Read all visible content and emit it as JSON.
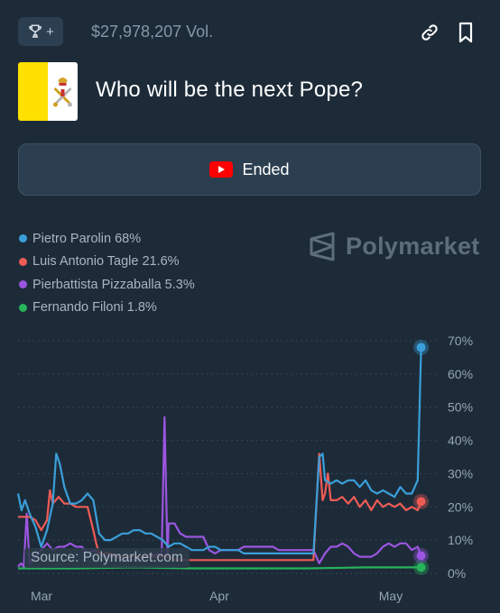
{
  "header": {
    "volume": "$27,978,207 Vol.",
    "trophy_plus": "+",
    "icons": [
      "trophy-icon",
      "link-icon",
      "bookmark-icon"
    ]
  },
  "market": {
    "title": "Who will be the next Pope?",
    "flag": "vatican-flag",
    "status_label": "Ended",
    "status_icon": "youtube-play-icon"
  },
  "watermark": {
    "text": "Polymarket"
  },
  "source": "Source: Polymarket.com",
  "colors": {
    "background": "#1d2b39",
    "parolin": "#3a9fd9",
    "tagle": "#ef5b55",
    "pizzaballa": "#9b55e0",
    "filoni": "#27b35a"
  },
  "chart_data": {
    "type": "line",
    "x_ticks": [
      "Mar",
      "Apr",
      "May"
    ],
    "y_ticks": [
      "0%",
      "10%",
      "20%",
      "30%",
      "40%",
      "50%",
      "60%",
      "70%"
    ],
    "ylim": [
      0,
      70
    ],
    "xlim": [
      0,
      72
    ],
    "grid": "dotted horizontal",
    "legend_position": "top-left",
    "series": [
      {
        "name": "Pietro Parolin",
        "current_label": "Pietro Parolin 68%",
        "current": 68,
        "color": "#3a9fd9",
        "points": [
          [
            0,
            24
          ],
          [
            0.6,
            19
          ],
          [
            1.2,
            22
          ],
          [
            2,
            18
          ],
          [
            3,
            14
          ],
          [
            4,
            8
          ],
          [
            5,
            13
          ],
          [
            6,
            21
          ],
          [
            6.6,
            36
          ],
          [
            7.2,
            33
          ],
          [
            8,
            26
          ],
          [
            9,
            21
          ],
          [
            10,
            21
          ],
          [
            11,
            22
          ],
          [
            12,
            24
          ],
          [
            13,
            22
          ],
          [
            14,
            12
          ],
          [
            15,
            10
          ],
          [
            16,
            10
          ],
          [
            17,
            11
          ],
          [
            18,
            12
          ],
          [
            19,
            12
          ],
          [
            20,
            13
          ],
          [
            21,
            13
          ],
          [
            22,
            12
          ],
          [
            23,
            12
          ],
          [
            24,
            11
          ],
          [
            25,
            10
          ],
          [
            26,
            8
          ],
          [
            27,
            9
          ],
          [
            28,
            9
          ],
          [
            29,
            8
          ],
          [
            30,
            7
          ],
          [
            31,
            7
          ],
          [
            32,
            7
          ],
          [
            33,
            8
          ],
          [
            34,
            8
          ],
          [
            35,
            7
          ],
          [
            36,
            7
          ],
          [
            37,
            7
          ],
          [
            38,
            7
          ],
          [
            39,
            6
          ],
          [
            40,
            6
          ],
          [
            41,
            6
          ],
          [
            42,
            6
          ],
          [
            43,
            6
          ],
          [
            44,
            6
          ],
          [
            45,
            6
          ],
          [
            46,
            6
          ],
          [
            47,
            6
          ],
          [
            48,
            6
          ],
          [
            49,
            6
          ],
          [
            50,
            6
          ],
          [
            51,
            6
          ],
          [
            52,
            35
          ],
          [
            52.6,
            36
          ],
          [
            53,
            28
          ],
          [
            54,
            27
          ],
          [
            55,
            28
          ],
          [
            56,
            27
          ],
          [
            57,
            28
          ],
          [
            58,
            28
          ],
          [
            59,
            26
          ],
          [
            60,
            28
          ],
          [
            61,
            25
          ],
          [
            62,
            24
          ],
          [
            63,
            25
          ],
          [
            64,
            24
          ],
          [
            65,
            23
          ],
          [
            66,
            26
          ],
          [
            67,
            24
          ],
          [
            68,
            24
          ],
          [
            69,
            28
          ],
          [
            69.6,
            68
          ]
        ]
      },
      {
        "name": "Luis Antonio Tagle",
        "current_label": "Luis Antonio Tagle 21.6%",
        "current": 21.6,
        "color": "#ef5b55",
        "points": [
          [
            0,
            17
          ],
          [
            1,
            17
          ],
          [
            2,
            17
          ],
          [
            3,
            16
          ],
          [
            4,
            13
          ],
          [
            5,
            16
          ],
          [
            5.5,
            25
          ],
          [
            6,
            21
          ],
          [
            7,
            23
          ],
          [
            8,
            21
          ],
          [
            9,
            21
          ],
          [
            10,
            20
          ],
          [
            11,
            20
          ],
          [
            12,
            20
          ],
          [
            13,
            13
          ],
          [
            13.5,
            9
          ],
          [
            14,
            6
          ],
          [
            15,
            6
          ],
          [
            16,
            6
          ],
          [
            17,
            5
          ],
          [
            18,
            5
          ],
          [
            19,
            5
          ],
          [
            20,
            5
          ],
          [
            21,
            5
          ],
          [
            22,
            5
          ],
          [
            23,
            5
          ],
          [
            24,
            5
          ],
          [
            25,
            5
          ],
          [
            26,
            5
          ],
          [
            27,
            4
          ],
          [
            28,
            4
          ],
          [
            29,
            4
          ],
          [
            30,
            4
          ],
          [
            31,
            4
          ],
          [
            32,
            4
          ],
          [
            33,
            4
          ],
          [
            34,
            4
          ],
          [
            35,
            4
          ],
          [
            36,
            4
          ],
          [
            37,
            4
          ],
          [
            38,
            4
          ],
          [
            39,
            4
          ],
          [
            40,
            4
          ],
          [
            41,
            4
          ],
          [
            42,
            4
          ],
          [
            43,
            4
          ],
          [
            44,
            4
          ],
          [
            45,
            4
          ],
          [
            46,
            4
          ],
          [
            47,
            4
          ],
          [
            48,
            4
          ],
          [
            49,
            4
          ],
          [
            50,
            4
          ],
          [
            51,
            4
          ],
          [
            52,
            36
          ],
          [
            52.6,
            22
          ],
          [
            53,
            24
          ],
          [
            53.5,
            30
          ],
          [
            54,
            22
          ],
          [
            55,
            22
          ],
          [
            56,
            23
          ],
          [
            57,
            21
          ],
          [
            58,
            23
          ],
          [
            59,
            20
          ],
          [
            60,
            22
          ],
          [
            61,
            19
          ],
          [
            62,
            22
          ],
          [
            63,
            20
          ],
          [
            64,
            21
          ],
          [
            65,
            20
          ],
          [
            66,
            21
          ],
          [
            67,
            19
          ],
          [
            68,
            20
          ],
          [
            69,
            19
          ],
          [
            69.6,
            21.6
          ]
        ]
      },
      {
        "name": "Pierbattista Pizzaballa",
        "current_label": "Pierbattista Pizzaballa 5.3%",
        "current": 5.3,
        "color": "#9b55e0",
        "points": [
          [
            0,
            2
          ],
          [
            0.5,
            3
          ],
          [
            1,
            2
          ],
          [
            1.5,
            18
          ],
          [
            2,
            3
          ],
          [
            3,
            5
          ],
          [
            4,
            7
          ],
          [
            5,
            9
          ],
          [
            6,
            7
          ],
          [
            7,
            8
          ],
          [
            8,
            8
          ],
          [
            9,
            9
          ],
          [
            10,
            8
          ],
          [
            11,
            8
          ],
          [
            12,
            6
          ],
          [
            13,
            7
          ],
          [
            14,
            6
          ],
          [
            15,
            5
          ],
          [
            16,
            5
          ],
          [
            17,
            5
          ],
          [
            18,
            4
          ],
          [
            19,
            4
          ],
          [
            20,
            4
          ],
          [
            21,
            4
          ],
          [
            22,
            5
          ],
          [
            23,
            5
          ],
          [
            24,
            6
          ],
          [
            24.8,
            5
          ],
          [
            25.3,
            47
          ],
          [
            25.8,
            5
          ],
          [
            26,
            15
          ],
          [
            27,
            15
          ],
          [
            28,
            12
          ],
          [
            29,
            11
          ],
          [
            30,
            11
          ],
          [
            31,
            11
          ],
          [
            32,
            11
          ],
          [
            33,
            7
          ],
          [
            34,
            6
          ],
          [
            35,
            7
          ],
          [
            36,
            7
          ],
          [
            37,
            7
          ],
          [
            38,
            7
          ],
          [
            39,
            8
          ],
          [
            40,
            8
          ],
          [
            41,
            8
          ],
          [
            42,
            8
          ],
          [
            43,
            8
          ],
          [
            44,
            8
          ],
          [
            45,
            7
          ],
          [
            46,
            7
          ],
          [
            47,
            7
          ],
          [
            48,
            7
          ],
          [
            49,
            7
          ],
          [
            50,
            7
          ],
          [
            51,
            7
          ],
          [
            52,
            3
          ],
          [
            53,
            6
          ],
          [
            54,
            8
          ],
          [
            55,
            8
          ],
          [
            56,
            9
          ],
          [
            57,
            8
          ],
          [
            58,
            6
          ],
          [
            59,
            5
          ],
          [
            60,
            5
          ],
          [
            61,
            5
          ],
          [
            62,
            6
          ],
          [
            63,
            8
          ],
          [
            64,
            9
          ],
          [
            65,
            8
          ],
          [
            66,
            9
          ],
          [
            67,
            9
          ],
          [
            68,
            7
          ],
          [
            69,
            8
          ],
          [
            69.6,
            5.3
          ]
        ]
      },
      {
        "name": "Fernando Filoni",
        "current_label": "Fernando Filoni 1.8%",
        "current": 1.8,
        "color": "#27b35a",
        "points": [
          [
            0,
            1.5
          ],
          [
            10,
            1.5
          ],
          [
            20,
            1.8
          ],
          [
            30,
            1.5
          ],
          [
            40,
            1.5
          ],
          [
            50,
            1.5
          ],
          [
            60,
            1.8
          ],
          [
            69.6,
            1.8
          ]
        ]
      }
    ]
  }
}
